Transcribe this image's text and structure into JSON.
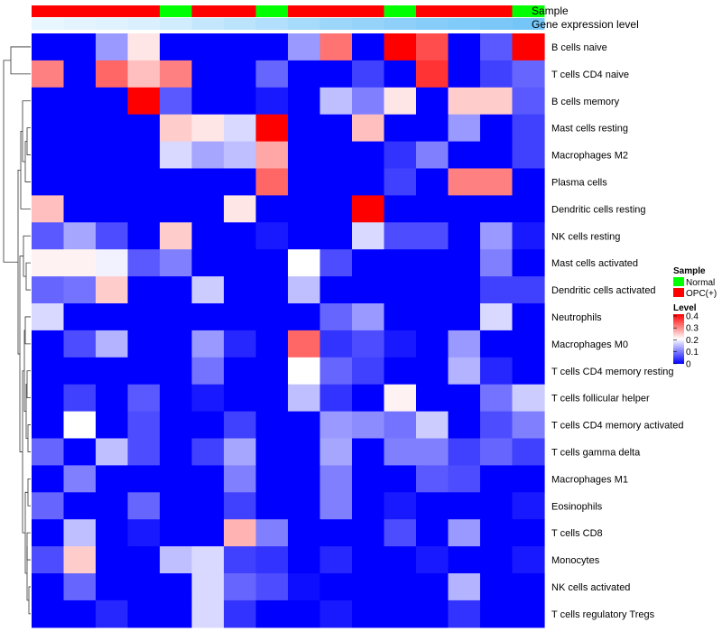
{
  "chart_data": {
    "type": "heatmap",
    "title": "",
    "annotations": {
      "sample_title": "Sample",
      "gene_expression_title": "Gene expression level",
      "sample_groups": [
        "OPC(+)",
        "OPC(+)",
        "OPC(+)",
        "OPC(+)",
        "Normal",
        "OPC(+)",
        "OPC(+)",
        "Normal",
        "OPC(+)",
        "OPC(+)",
        "OPC(+)",
        "Normal",
        "OPC(+)",
        "OPC(+)",
        "OPC(+)",
        "Normal"
      ],
      "gene_expression": [
        0.02,
        0.05,
        0.08,
        0.12,
        0.2,
        0.28,
        0.35,
        0.42,
        0.5,
        0.58,
        0.63,
        0.68,
        0.73,
        0.78,
        0.82,
        0.86
      ]
    },
    "rows": [
      "B cells naive",
      "T cells CD4 naive",
      "B cells memory",
      "Mast cells resting",
      "Macrophages M2",
      "Plasma cells",
      "Dendritic cells resting",
      "NK cells resting",
      "Mast cells activated",
      "Dendritic cells activated",
      "Neutrophils",
      "Macrophages M0",
      "T cells CD4 memory resting",
      "T cells follicular helper",
      "T cells CD4 memory activated",
      "T cells gamma delta",
      "Macrophages M1",
      "Eosinophils",
      "T cells CD8",
      "Monocytes",
      "NK cells activated",
      "T cells regulatory  Tregs"
    ],
    "values": [
      [
        0,
        0,
        0.12,
        0.22,
        0,
        0,
        0,
        0,
        0.12,
        0.31,
        0,
        0.4,
        0.34,
        0,
        0.07,
        0.4
      ],
      [
        0.3,
        0,
        0.32,
        0.25,
        0.3,
        0,
        0,
        0.08,
        0,
        0,
        0.05,
        0,
        0.36,
        0,
        0.05,
        0.08
      ],
      [
        0,
        0,
        0,
        0.4,
        0.07,
        0,
        0,
        0.02,
        0,
        0.15,
        0.1,
        0.22,
        0,
        0.24,
        0.24,
        0.07
      ],
      [
        0,
        0,
        0,
        0,
        0.24,
        0.22,
        0.17,
        0.4,
        0,
        0,
        0.25,
        0,
        0,
        0.12,
        0,
        0.05
      ],
      [
        0,
        0,
        0,
        0,
        0.17,
        0.13,
        0.15,
        0.27,
        0,
        0,
        0,
        0.04,
        0.1,
        0,
        0,
        0.05
      ],
      [
        0,
        0,
        0,
        0,
        0,
        0,
        0,
        0.32,
        0,
        0,
        0,
        0.05,
        0,
        0.3,
        0.3,
        0
      ],
      [
        0.25,
        0,
        0,
        0,
        0,
        0,
        0.22,
        0,
        0,
        0,
        0.4,
        0,
        0,
        0,
        0,
        0
      ],
      [
        0.07,
        0.13,
        0.06,
        0,
        0.24,
        0,
        0,
        0.02,
        0,
        0,
        0.17,
        0.06,
        0.06,
        0,
        0.12,
        0.02
      ],
      [
        0.21,
        0.21,
        0.19,
        0.07,
        0.1,
        0,
        0,
        0,
        0.2,
        0.06,
        0,
        0,
        0,
        0,
        0.1,
        0
      ],
      [
        0.08,
        0.09,
        0.24,
        0,
        0,
        0.16,
        0,
        0,
        0.15,
        0,
        0,
        0,
        0,
        0,
        0.05,
        0.05
      ],
      [
        0.17,
        0,
        0,
        0,
        0,
        0,
        0,
        0,
        0,
        0.08,
        0.12,
        0,
        0,
        0,
        0.17,
        0
      ],
      [
        0,
        0.06,
        0.14,
        0,
        0,
        0.12,
        0.03,
        0,
        0.32,
        0.04,
        0.06,
        0.02,
        0,
        0.12,
        0,
        0
      ],
      [
        0,
        0,
        0,
        0,
        0,
        0.09,
        0,
        0,
        0.2,
        0.08,
        0.05,
        0,
        0,
        0.14,
        0.03,
        0
      ],
      [
        0,
        0.05,
        0,
        0.07,
        0,
        0.02,
        0,
        0,
        0.15,
        0.04,
        0,
        0.21,
        0,
        0,
        0.09,
        0.16
      ],
      [
        0,
        0.2,
        0,
        0.06,
        0,
        0,
        0.05,
        0,
        0,
        0.12,
        0.11,
        0.09,
        0.16,
        0,
        0.06,
        0.1
      ],
      [
        0.08,
        0,
        0.15,
        0.06,
        0,
        0.05,
        0.13,
        0,
        0,
        0.13,
        0,
        0.1,
        0.1,
        0.05,
        0.08,
        0.05
      ],
      [
        0,
        0.1,
        0,
        0,
        0,
        0,
        0.1,
        0,
        0,
        0.1,
        0,
        0,
        0.07,
        0.06,
        0,
        0
      ],
      [
        0.08,
        0,
        0,
        0.08,
        0,
        0,
        0.05,
        0,
        0,
        0.1,
        0,
        0.02,
        0,
        0,
        0,
        0.02
      ],
      [
        0,
        0.15,
        0,
        0.02,
        0,
        0,
        0.26,
        0.1,
        0,
        0,
        0,
        0.06,
        0,
        0.12,
        0,
        0
      ],
      [
        0.06,
        0.24,
        0,
        0,
        0.15,
        0.17,
        0.05,
        0.04,
        0,
        0.03,
        0,
        0,
        0.02,
        0,
        0,
        0.02
      ],
      [
        0,
        0.08,
        0,
        0,
        0,
        0.17,
        0.08,
        0.06,
        0.01,
        0,
        0,
        0,
        0,
        0.14,
        0,
        0
      ],
      [
        0,
        0,
        0.03,
        0,
        0,
        0.17,
        0.04,
        0,
        0,
        0.02,
        0,
        0,
        0,
        0.04,
        0,
        0
      ]
    ],
    "scale": {
      "min": 0,
      "max": 0.4,
      "low_color": "#0000ff",
      "mid_color": "#ffffff",
      "high_color": "#ff0000",
      "mid_value": 0.2
    },
    "legend": {
      "sample_title": "Sample",
      "sample_entries": [
        {
          "label": "Normal",
          "color": "#00ff00"
        },
        {
          "label": "OPC(+)",
          "color": "#ff0000"
        }
      ],
      "level_title": "Level",
      "level_ticks": [
        "0.4",
        "0.3",
        "0.2",
        "0.1",
        "0"
      ]
    },
    "dendrogram": "hierarchical clustering of rows (left side)"
  }
}
